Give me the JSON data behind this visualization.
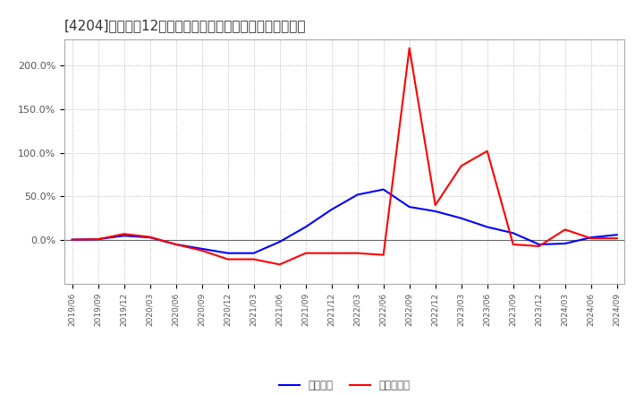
{
  "title": "[4204]　利益だ12か月移動合計の対前年同期増減率の推移",
  "legend_labels": [
    "経常利益",
    "当期純利益"
  ],
  "x_labels": [
    "2019/06",
    "2019/09",
    "2019/12",
    "2020/03",
    "2020/06",
    "2020/09",
    "2020/12",
    "2021/03",
    "2021/06",
    "2021/09",
    "2021/12",
    "2022/03",
    "2022/06",
    "2022/09",
    "2022/12",
    "2023/03",
    "2023/06",
    "2023/09",
    "2023/12",
    "2024/03",
    "2024/06",
    "2024/09"
  ],
  "blue_data": [
    0.5,
    1.0,
    5.0,
    3.0,
    -5.0,
    -10.0,
    -15.0,
    -15.0,
    -2.0,
    15.0,
    35.0,
    52.0,
    58.0,
    38.0,
    33.0,
    25.0,
    15.0,
    8.0,
    -5.0,
    -4.0,
    3.0,
    6.0
  ],
  "red_data": [
    0.5,
    1.0,
    7.0,
    3.5,
    -5.0,
    -12.0,
    -22.0,
    -22.0,
    -28.0,
    -15.0,
    -15.0,
    -15.0,
    -17.0,
    220.0,
    40.0,
    85.0,
    102.0,
    -5.0,
    -7.0,
    12.0,
    2.0,
    2.0
  ],
  "ylim": [
    -50,
    230
  ],
  "yticks": [
    0.0,
    50.0,
    100.0,
    150.0,
    200.0
  ],
  "ytick_labels": [
    "0.0%",
    "50.0%",
    "100.0%",
    "150.0%",
    "200.0%"
  ],
  "blue_color": "#0000FF",
  "red_color": "#FF0000",
  "background_color": "#FFFFFF",
  "plot_bg_color": "#FFFFFF",
  "grid_color": "#AAAAAA",
  "title_fontsize": 11,
  "line_width": 1.5
}
